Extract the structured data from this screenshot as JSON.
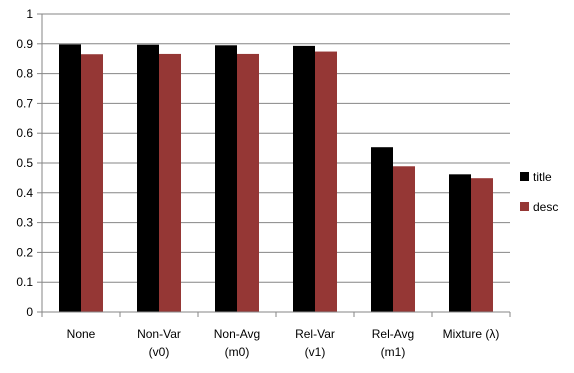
{
  "chart_data": {
    "type": "bar",
    "categories": [
      [
        "None"
      ],
      [
        "Non-Var",
        "(v0)"
      ],
      [
        "Non-Avg",
        "(m0)"
      ],
      [
        "Rel-Var",
        "(v1)"
      ],
      [
        "Rel-Avg",
        "(m1)"
      ],
      [
        "Mixture (λ)"
      ]
    ],
    "series": [
      {
        "name": "title",
        "color": "#000000",
        "values": [
          0.898,
          0.897,
          0.895,
          0.893,
          0.553,
          0.462
        ]
      },
      {
        "name": "desc",
        "color": "#953735",
        "values": [
          0.865,
          0.866,
          0.866,
          0.874,
          0.489,
          0.449
        ]
      }
    ],
    "yticks": [
      "0",
      "0.1",
      "0.2",
      "0.3",
      "0.4",
      "0.5",
      "0.6",
      "0.7",
      "0.8",
      "0.9",
      "1"
    ],
    "ylim": [
      0,
      1
    ],
    "grid": true,
    "legend_position": "right"
  }
}
